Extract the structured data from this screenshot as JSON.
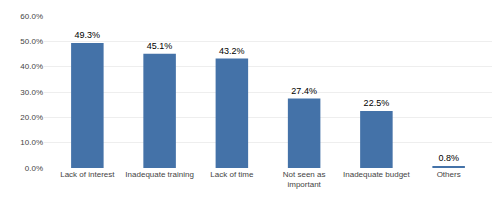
{
  "chart_data": {
    "type": "bar",
    "categories": [
      "Lack of interest",
      "Inadequate training",
      "Lack of time",
      "Not seen as\nimportant",
      "Inadequate budget",
      "Others"
    ],
    "values": [
      49.3,
      45.1,
      43.2,
      27.4,
      22.5,
      0.8
    ],
    "value_labels": [
      "49.3%",
      "45.1%",
      "43.2%",
      "27.4%",
      "22.5%",
      "0.8%"
    ],
    "data_labels": true,
    "color": "#4472a8",
    "ylim": [
      0,
      60
    ],
    "yticks": [
      {
        "value": 0,
        "label": "0.0%"
      },
      {
        "value": 10,
        "label": "10.0%"
      },
      {
        "value": 20,
        "label": "20.0%"
      },
      {
        "value": 30,
        "label": "30.0%"
      },
      {
        "value": 40,
        "label": "40.0%"
      },
      {
        "value": 50,
        "label": "50.0%"
      },
      {
        "value": 60,
        "label": "60.0%"
      }
    ],
    "grid": true
  }
}
